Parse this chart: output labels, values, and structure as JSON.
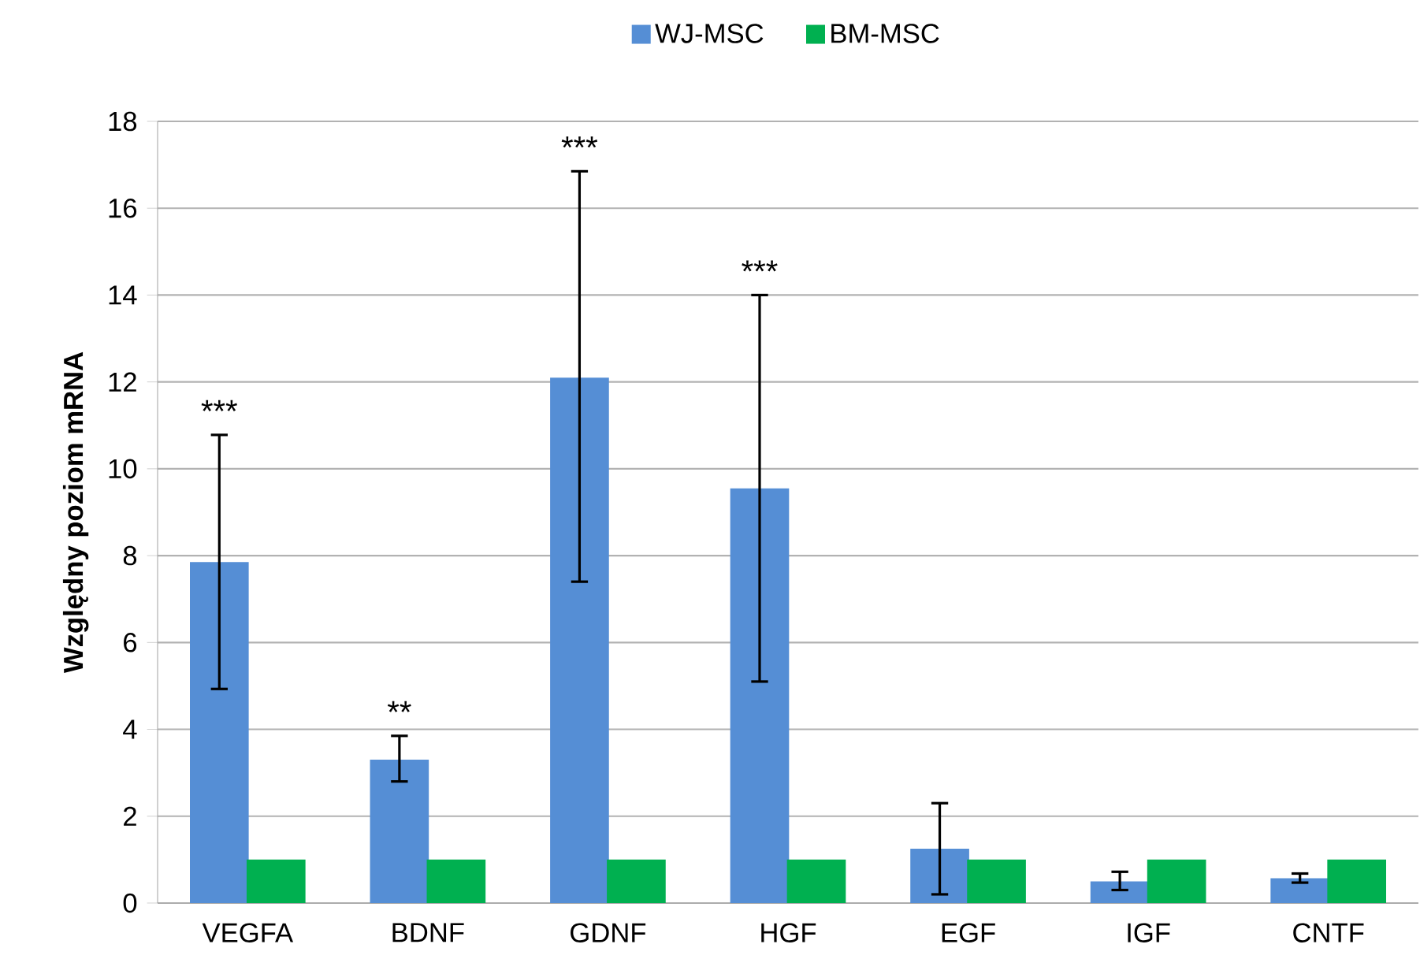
{
  "chart_data": {
    "type": "bar",
    "ylabel": "Względny poziom mRNA",
    "categories": [
      "VEGFA",
      "BDNF",
      "GDNF",
      "HGF",
      "EGF",
      "IGF",
      "CNTF"
    ],
    "series": [
      {
        "name": "WJ-MSC",
        "color": "#558ed5",
        "values": [
          7.85,
          3.3,
          12.1,
          9.55,
          1.25,
          0.5,
          0.57
        ],
        "errors": [
          [
            4.93,
            10.78
          ],
          [
            2.8,
            3.85
          ],
          [
            7.4,
            16.85
          ],
          [
            5.1,
            14.0
          ],
          [
            0.2,
            2.3
          ],
          [
            0.3,
            0.72
          ],
          [
            0.47,
            0.68
          ]
        ]
      },
      {
        "name": "BM-MSC",
        "color": "#00b050",
        "values": [
          1,
          1,
          1,
          1,
          1,
          1,
          1
        ]
      }
    ],
    "ylim": [
      0,
      18
    ],
    "yticks": [
      0,
      2,
      4,
      6,
      8,
      10,
      12,
      14,
      16,
      18
    ],
    "grid": "y",
    "legend": "top",
    "annotations": [
      "***",
      "**",
      "***",
      "***"
    ]
  }
}
